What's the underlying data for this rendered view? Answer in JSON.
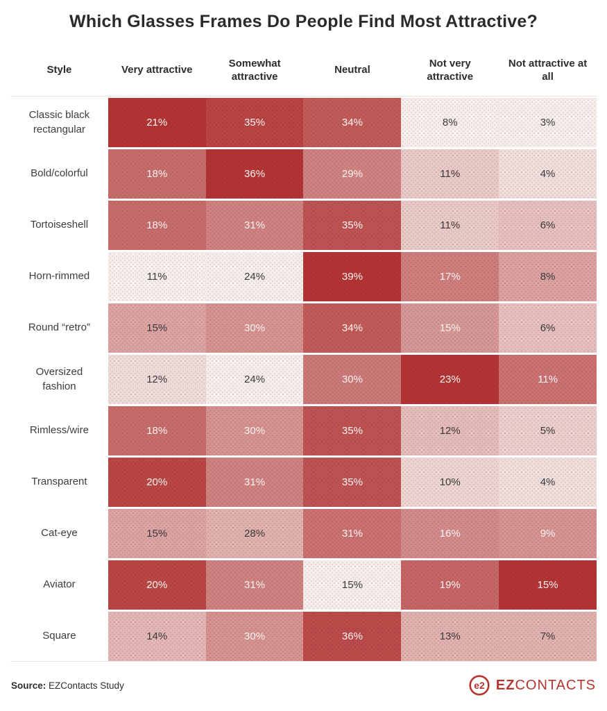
{
  "title": "Which Glasses Frames Do People Find Most Attractive?",
  "chart_data": {
    "type": "heatmap",
    "title": "Which Glasses Frames Do People Find Most Attractive?",
    "row_header": "Style",
    "columns": [
      "Very attractive",
      "Somewhat attractive",
      "Neutral",
      "Not very attractive",
      "Not attractive at all"
    ],
    "rows": [
      "Classic black rectangular",
      "Bold/colorful",
      "Tortoiseshell",
      "Horn-rimmed",
      "Round “retro”",
      "Oversized fashion",
      "Rimless/wire",
      "Transparent",
      "Cat-eye",
      "Aviator",
      "Square"
    ],
    "values": [
      [
        21,
        35,
        34,
        8,
        3
      ],
      [
        18,
        36,
        29,
        11,
        4
      ],
      [
        18,
        31,
        35,
        11,
        6
      ],
      [
        11,
        24,
        39,
        17,
        8
      ],
      [
        15,
        30,
        34,
        15,
        6
      ],
      [
        12,
        24,
        30,
        23,
        11
      ],
      [
        18,
        30,
        35,
        12,
        5
      ],
      [
        20,
        31,
        35,
        10,
        4
      ],
      [
        15,
        28,
        31,
        16,
        9
      ],
      [
        20,
        31,
        15,
        19,
        15
      ],
      [
        14,
        30,
        36,
        13,
        7
      ]
    ],
    "unit": "%",
    "normalization": "per-column",
    "color_scale": {
      "light": "#f6efec",
      "dark": "#b23434"
    },
    "text_on_dark": "#faf3f1",
    "text_on_light": "#3a3a3a",
    "legend_position": "none",
    "grid": false
  },
  "footer": {
    "source_label": "Source:",
    "source_text": " EZContacts Study",
    "logo_mark": "e2",
    "logo_text_bold": "EZ",
    "logo_text_rest": "CONTACTS",
    "logo_color": "#b5342f"
  }
}
